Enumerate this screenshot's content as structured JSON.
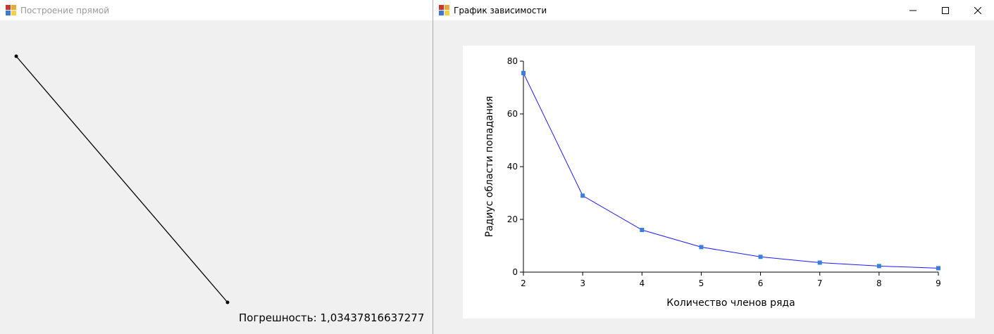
{
  "left_window": {
    "title": "Построение прямой",
    "error_label": "Погрешность: 1,03437816637277"
  },
  "right_window": {
    "title": "График зависимости",
    "buttons": {
      "minimize": "minimize-icon",
      "maximize": "maximize-icon",
      "close": "close-icon"
    }
  },
  "chart_data": {
    "type": "line",
    "xlabel": "Количество членов ряда",
    "ylabel": "Радиус области попадания",
    "x": [
      2,
      3,
      4,
      5,
      6,
      7,
      8,
      9
    ],
    "series": [
      {
        "values": [
          75.5,
          29,
          16,
          9.5,
          5.8,
          3.6,
          2.3,
          1.5
        ],
        "color": "#1a1aff",
        "marker_color": "#3a7fe0"
      }
    ],
    "xlim": [
      2,
      9
    ],
    "ylim": [
      0,
      80
    ],
    "xticks": [
      2,
      3,
      4,
      5,
      6,
      7,
      8,
      9
    ],
    "yticks": [
      0,
      20,
      40,
      60,
      80
    ],
    "grid": false,
    "legend": "none"
  }
}
